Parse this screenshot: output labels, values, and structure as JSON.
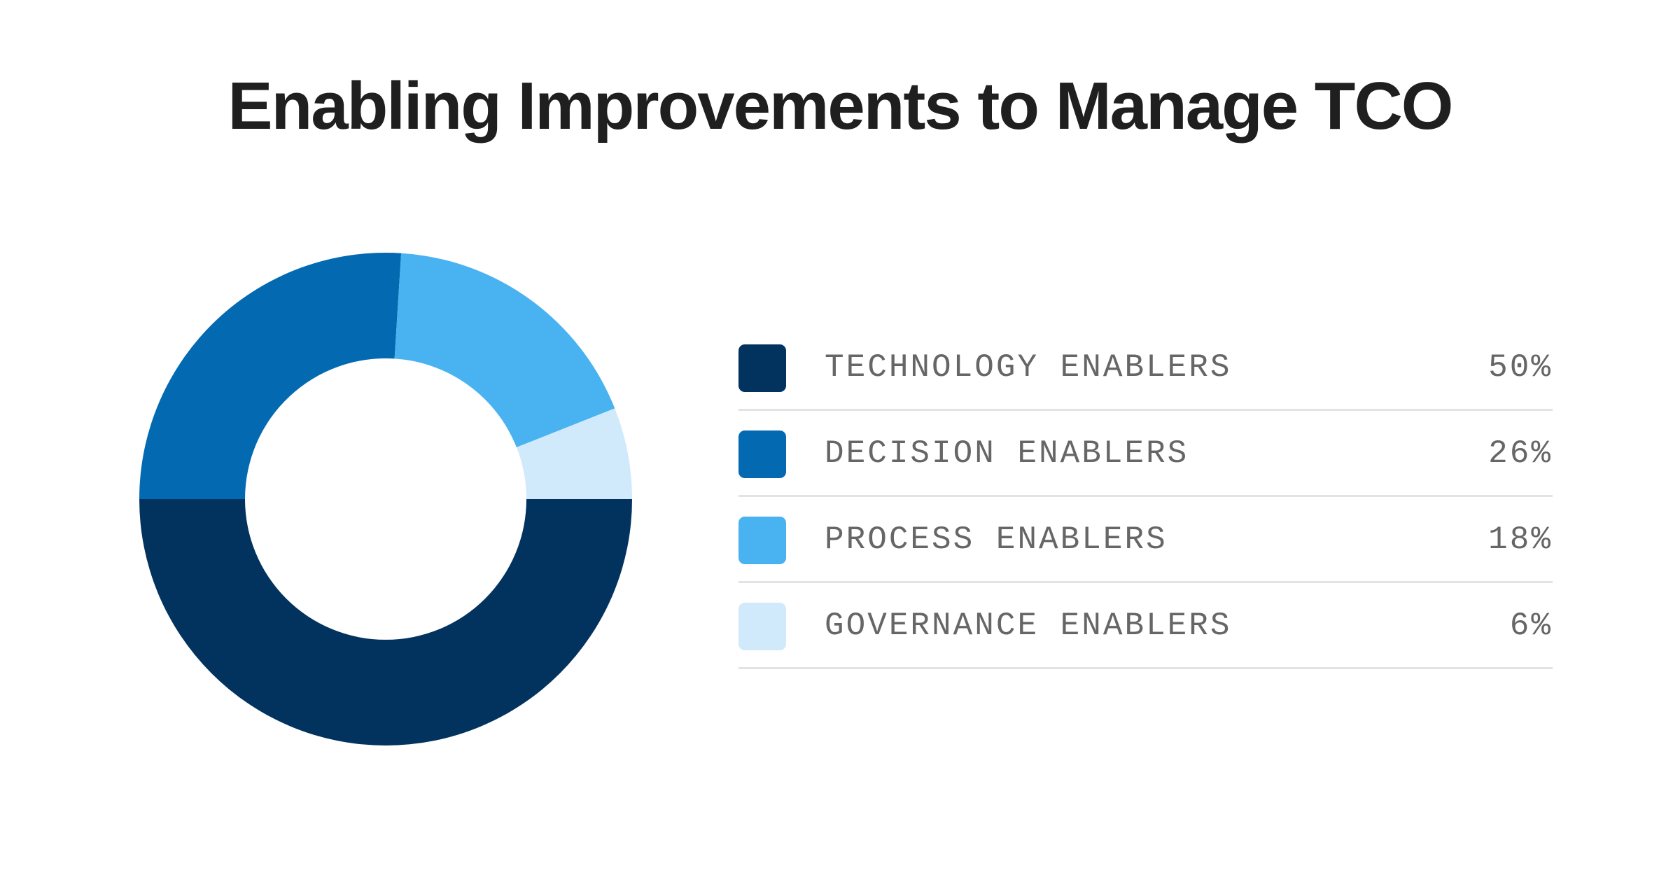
{
  "chart_data": {
    "type": "pie",
    "title": "Enabling Improvements to Manage TCO",
    "categories": [
      "TECHNOLOGY ENABLERS",
      "DECISION ENABLERS",
      "PROCESS ENABLERS",
      "GOVERNANCE ENABLERS"
    ],
    "values": [
      50,
      26,
      18,
      6
    ],
    "value_labels": [
      "50%",
      "26%",
      "18%",
      "6%"
    ],
    "colors": [
      "#02335E",
      "#0369B1",
      "#49B2F1",
      "#D1EAFB"
    ],
    "donut": true,
    "legend_position": "right"
  }
}
